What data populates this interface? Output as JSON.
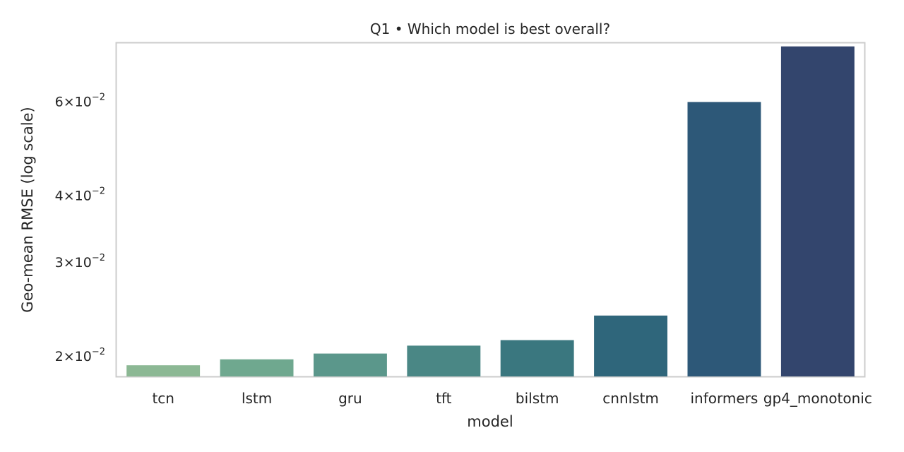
{
  "chart_data": {
    "type": "bar",
    "title": "Q1 • Which model is best overall?",
    "xlabel": "model",
    "ylabel": "Geo-mean RMSE (log scale)",
    "y_scale": "log",
    "ylim": [
      0.0183,
      0.0771
    ],
    "grid": false,
    "categories": [
      "tcn",
      "lstm",
      "gru",
      "tft",
      "bilstm",
      "cnnlstm",
      "informers",
      "gp4_monotonic"
    ],
    "values": [
      0.0192,
      0.0197,
      0.0202,
      0.0209,
      0.0214,
      0.0238,
      0.0598,
      0.076
    ],
    "colors": [
      "#8cb894",
      "#6fa88f",
      "#5b978b",
      "#4a8785",
      "#3a777f",
      "#2f667b",
      "#2d5878",
      "#33456d"
    ],
    "yticks": [
      {
        "value": 0.02,
        "mantissa": "2",
        "exp": "−2"
      },
      {
        "value": 0.03,
        "mantissa": "3",
        "exp": "−2"
      },
      {
        "value": 0.04,
        "mantissa": "4",
        "exp": "−2"
      },
      {
        "value": 0.06,
        "mantissa": "6",
        "exp": "−2"
      }
    ],
    "tick_base": "10"
  }
}
